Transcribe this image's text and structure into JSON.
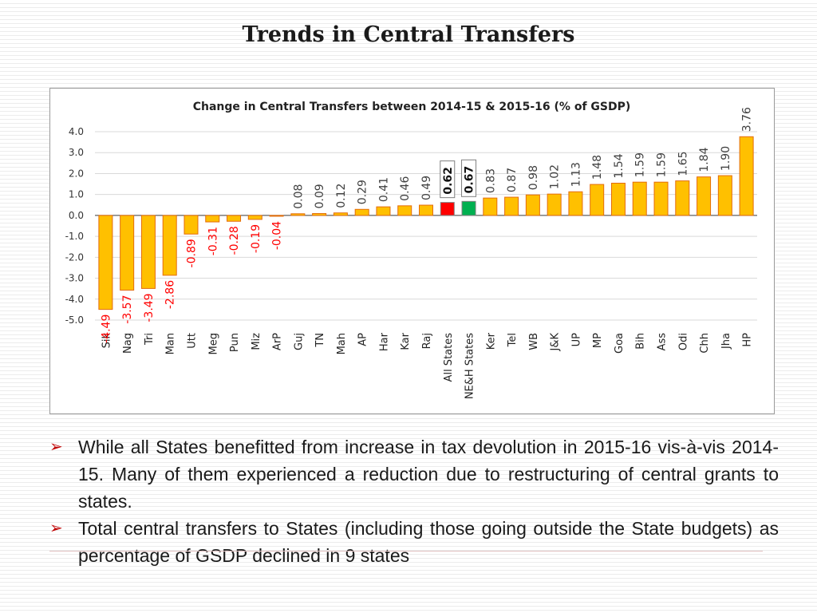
{
  "slide": {
    "title": "Trends in Central Transfers"
  },
  "chart_data": {
    "type": "bar",
    "title": "Change in Central Transfers between 2014-15 & 2015-16 (% of GSDP)",
    "xlabel": "",
    "ylabel": "",
    "ylim": [
      -5.0,
      4.0
    ],
    "yticks": [
      "4.0",
      "3.0",
      "2.0",
      "1.0",
      "0.0",
      "-1.0",
      "-2.0",
      "-3.0",
      "-4.0",
      "-5.0"
    ],
    "grid": true,
    "categories": [
      "Sik",
      "Nag",
      "Tri",
      "Man",
      "Utt",
      "Meg",
      "Pun",
      "Miz",
      "ArP",
      "Guj",
      "TN",
      "Mah",
      "AP",
      "Har",
      "Kar",
      "Raj",
      "All States",
      "NE&H States",
      "Ker",
      "Tel",
      "WB",
      "J&K",
      "UP",
      "MP",
      "Goa",
      "Bih",
      "Ass",
      "Odi",
      "Chh",
      "Jha",
      "HP"
    ],
    "values": [
      -4.49,
      -3.57,
      -3.49,
      -2.86,
      -0.89,
      -0.31,
      -0.28,
      -0.19,
      -0.04,
      0.08,
      0.09,
      0.12,
      0.29,
      0.41,
      0.46,
      0.49,
      0.62,
      0.67,
      0.83,
      0.87,
      0.98,
      1.02,
      1.13,
      1.48,
      1.54,
      1.59,
      1.59,
      1.65,
      1.84,
      1.9,
      3.76
    ],
    "data_labels": [
      "-4.49",
      "-3.57",
      "-3.49",
      "-2.86",
      "-0.89",
      "-0.31",
      "-0.28",
      "-0.19",
      "-0.04",
      "0.08",
      "0.09",
      "0.12",
      "0.29",
      "0.41",
      "0.46",
      "0.49",
      "0.62",
      "0.67",
      "0.83",
      "0.87",
      "0.98",
      "1.02",
      "1.13",
      "1.48",
      "1.54",
      "1.59",
      "1.59",
      "1.65",
      "1.84",
      "1.90",
      "3.76"
    ],
    "colors": {
      "default_bar": "#ffc000",
      "bar_border": "#e46c0a",
      "all_states_bar": "#ff0000",
      "neh_states_bar": "#00b050",
      "negative_label": "#ff0000",
      "positive_label": "#404040"
    }
  },
  "bullets": [
    "While all States benefitted from increase in tax devolution in 2015-16 vis-à-vis 2014-15. Many of them experienced a reduction due to restructuring of central grants to states.",
    "Total central transfers to States (including those going outside the State budgets) as percentage of GSDP declined in 9 states"
  ],
  "bullet_marker_icon": "arrow-bullet-icon"
}
